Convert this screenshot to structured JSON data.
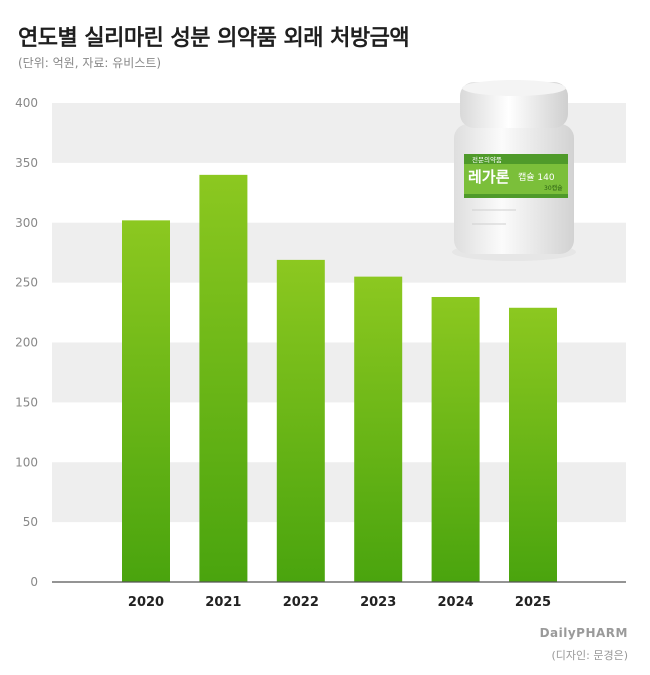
{
  "header": {
    "title": "연도별 실리마린 성분 의약품 외래 처방금액",
    "subtitle": "(단위: 억원, 자료: 유비스트)"
  },
  "product_image": {
    "icon": "medicine-bottle",
    "label_top": "전문의약품",
    "brand_name": "레가론",
    "capsule_label": "캡슐 140",
    "count_label": "30캡슐"
  },
  "footer": {
    "brand": "DailyPHARM",
    "credit": "(디자인: 문경은)"
  },
  "colors": {
    "bar_top": "#8cc820",
    "bar_bottom": "#4aa40e",
    "band": "#eeeeee",
    "axis": "#555555"
  },
  "chart_data": {
    "type": "bar",
    "title": "연도별 실리마린 성분 의약품 외래 처방금액",
    "subtitle": "(단위: 억원, 자료: 유비스트)",
    "categories": [
      "2020",
      "2021",
      "2022",
      "2023",
      "2024",
      "2025"
    ],
    "values": [
      302,
      340,
      269,
      255,
      238,
      229
    ],
    "ylim": [
      0,
      400
    ],
    "yticks": [
      0,
      50,
      100,
      150,
      200,
      250,
      300,
      350,
      400
    ],
    "grid": "alternating horizontal bands"
  }
}
